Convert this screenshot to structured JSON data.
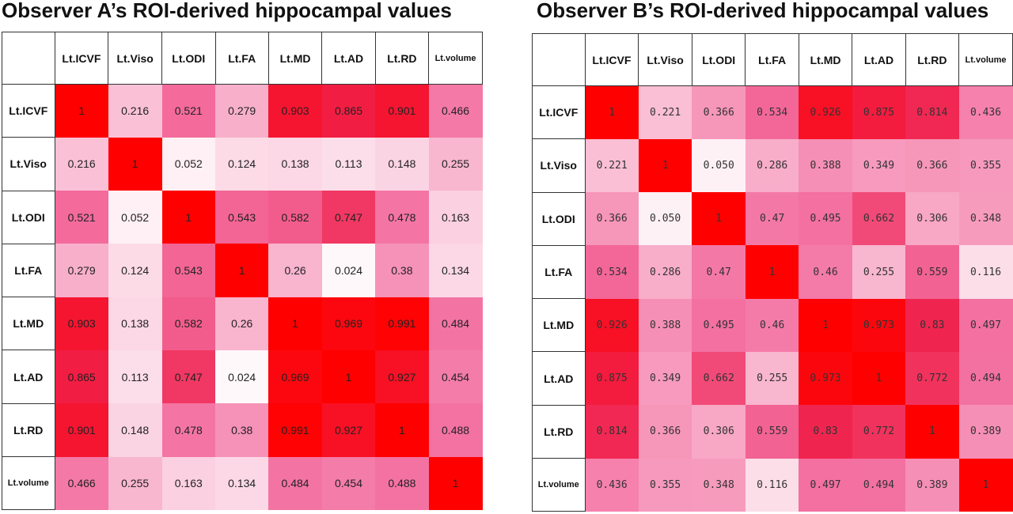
{
  "chart_data": [
    {
      "type": "heatmap",
      "title": "Observer A’s ROI-derived hippocampal values",
      "labels": [
        "Lt.ICVF",
        "Lt.Viso",
        "Lt.ODI",
        "Lt.FA",
        "Lt.MD",
        "Lt.AD",
        "Lt.RD",
        "Lt.volume"
      ],
      "values": [
        [
          "1",
          "0.216",
          "0.521",
          "0.279",
          "0.903",
          "0.865",
          "0.901",
          "0.466"
        ],
        [
          "0.216",
          "1",
          "0.052",
          "0.124",
          "0.138",
          "0.113",
          "0.148",
          "0.255"
        ],
        [
          "0.521",
          "0.052",
          "1",
          "0.543",
          "0.582",
          "0.747",
          "0.478",
          "0.163"
        ],
        [
          "0.279",
          "0.124",
          "0.543",
          "1",
          "0.26",
          "0.024",
          "0.38",
          "0.134"
        ],
        [
          "0.903",
          "0.138",
          "0.582",
          "0.26",
          "1",
          "0.969",
          "0.991",
          "0.484"
        ],
        [
          "0.865",
          "0.113",
          "0.747",
          "0.024",
          "0.969",
          "1",
          "0.927",
          "0.454"
        ],
        [
          "0.901",
          "0.148",
          "0.478",
          "0.38",
          "0.991",
          "0.927",
          "1",
          "0.488"
        ],
        [
          "0.466",
          "0.255",
          "0.163",
          "0.134",
          "0.484",
          "0.454",
          "0.488",
          "1"
        ]
      ],
      "color_low": "#ffffff",
      "color_high": "#ff0000"
    },
    {
      "type": "heatmap",
      "title": "Observer B’s ROI-derived hippocampal values",
      "labels": [
        "Lt.ICVF",
        "Lt.Viso",
        "Lt.ODI",
        "Lt.FA",
        "Lt.MD",
        "Lt.AD",
        "Lt.RD",
        "Lt.volume"
      ],
      "values": [
        [
          "1",
          "0.221",
          "0.366",
          "0.534",
          "0.926",
          "0.875",
          "0.814",
          "0.436"
        ],
        [
          "0.221",
          "1",
          "0.050",
          "0.286",
          "0.388",
          "0.349",
          "0.366",
          "0.355"
        ],
        [
          "0.366",
          "0.050",
          "1",
          "0.47",
          "0.495",
          "0.662",
          "0.306",
          "0.348"
        ],
        [
          "0.534",
          "0.286",
          "0.47",
          "1",
          "0.46",
          "0.255",
          "0.559",
          "0.116"
        ],
        [
          "0.926",
          "0.388",
          "0.495",
          "0.46",
          "1",
          "0.973",
          "0.83",
          "0.497"
        ],
        [
          "0.875",
          "0.349",
          "0.662",
          "0.255",
          "0.973",
          "1",
          "0.772",
          "0.494"
        ],
        [
          "0.814",
          "0.366",
          "0.306",
          "0.559",
          "0.83",
          "0.772",
          "1",
          "0.389"
        ],
        [
          "0.436",
          "0.355",
          "0.348",
          "0.116",
          "0.497",
          "0.494",
          "0.389",
          "1"
        ]
      ],
      "color_low": "#ffffff",
      "color_high": "#ff0000"
    }
  ]
}
